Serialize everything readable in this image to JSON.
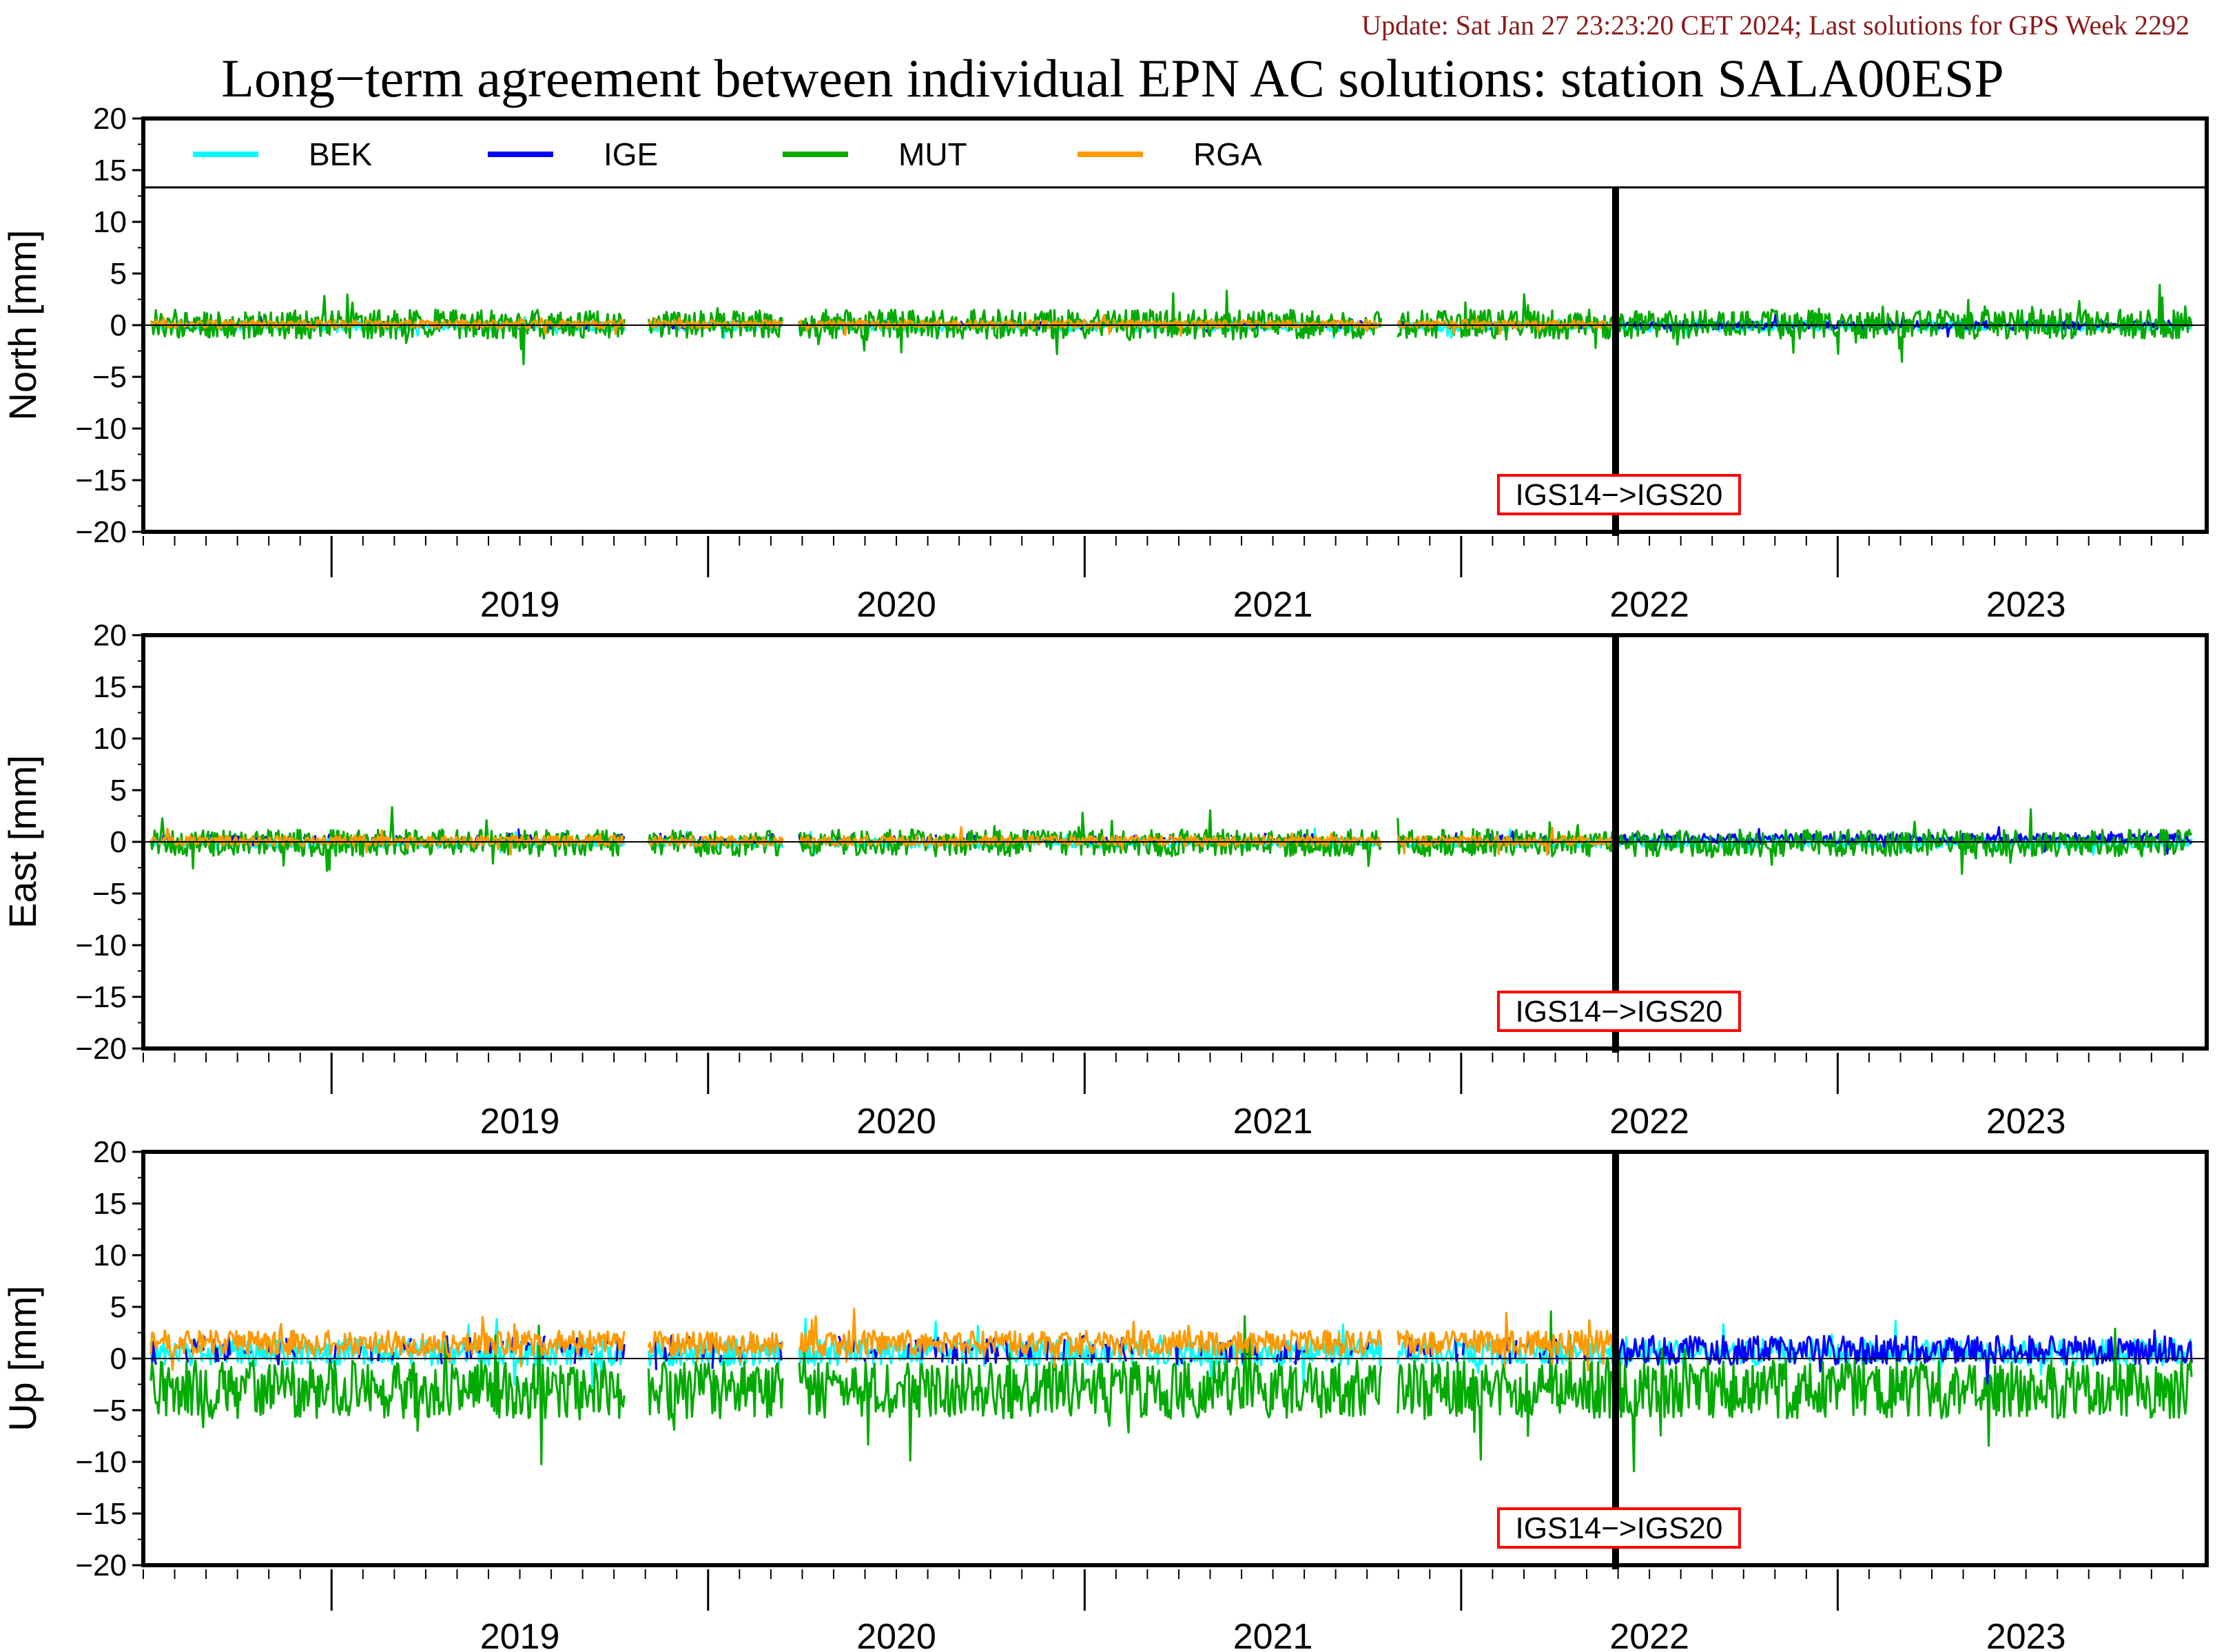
{
  "header": {
    "update": "Update: Sat Jan 27 23:23:20 CET 2024; Last solutions for GPS Week 2292",
    "title": "Long−term agreement between individual EPN AC solutions: station SALA00ESP"
  },
  "colors": {
    "BEK": "#00ffff",
    "IGE": "#0000ff",
    "MUT": "#00aa00",
    "RGA": "#ff9900",
    "update_text": "#8b1a1a",
    "frame_label_box": "#ff0000"
  },
  "chart_data": [
    {
      "type": "line",
      "panel": "north",
      "ylabel": "North [mm]",
      "ylim": [
        -20,
        20
      ],
      "yticks": [
        "20",
        "15",
        "10",
        "5",
        "0",
        "−5",
        "−10",
        "−15",
        "−20"
      ],
      "xlim": [
        2018.5,
        2023.98
      ],
      "year_labels": [
        "2019",
        "2020",
        "2021",
        "2022",
        "2023"
      ],
      "legend": {
        "placement": "top",
        "entries": [
          "BEK",
          "IGE",
          "MUT",
          "RGA"
        ]
      },
      "frame_change": {
        "x": 2022.41,
        "label": "IGS14−>IGS20"
      },
      "series": [
        {
          "name": "BEK",
          "amplitude": 0.5,
          "offset": -0.1
        },
        {
          "name": "IGE",
          "amplitude": 0.4,
          "offset": 0.0
        },
        {
          "name": "MUT",
          "amplitude": 1.4,
          "offset": 0.1
        },
        {
          "name": "RGA",
          "amplitude": 0.4,
          "offset": 0.1
        }
      ]
    },
    {
      "type": "line",
      "panel": "east",
      "ylabel": "East [mm]",
      "ylim": [
        -20,
        20
      ],
      "yticks": [
        "20",
        "15",
        "10",
        "5",
        "0",
        "−5",
        "−10",
        "−15",
        "−20"
      ],
      "xlim": [
        2018.5,
        2023.98
      ],
      "year_labels": [
        "2019",
        "2020",
        "2021",
        "2022",
        "2023"
      ],
      "frame_change": {
        "x": 2022.41,
        "label": "IGS14−>IGS20"
      },
      "series": [
        {
          "name": "BEK",
          "amplitude": 0.5,
          "offset": -0.1
        },
        {
          "name": "IGE",
          "amplitude": 0.5,
          "offset": 0.3
        },
        {
          "name": "MUT",
          "amplitude": 1.3,
          "offset": -0.1
        },
        {
          "name": "RGA",
          "amplitude": 0.5,
          "offset": 0.1
        }
      ]
    },
    {
      "type": "line",
      "panel": "up",
      "ylabel": "Up [mm]",
      "ylim": [
        -20,
        20
      ],
      "yticks": [
        "20",
        "15",
        "10",
        "5",
        "0",
        "−5",
        "−10",
        "−15",
        "−20"
      ],
      "xlim": [
        2018.5,
        2023.98
      ],
      "year_labels": [
        "2019",
        "2020",
        "2021",
        "2022",
        "2023"
      ],
      "frame_change": {
        "x": 2022.41,
        "label": "IGS14−>IGS20"
      },
      "series": [
        {
          "name": "BEK",
          "amplitude": 1.3,
          "offset": 0.6
        },
        {
          "name": "IGE",
          "amplitude": 1.4,
          "offset": 0.8
        },
        {
          "name": "MUT",
          "amplitude": 2.8,
          "offset": -3.0
        },
        {
          "name": "RGA",
          "amplitude": 1.2,
          "offset": 1.5
        }
      ]
    }
  ]
}
